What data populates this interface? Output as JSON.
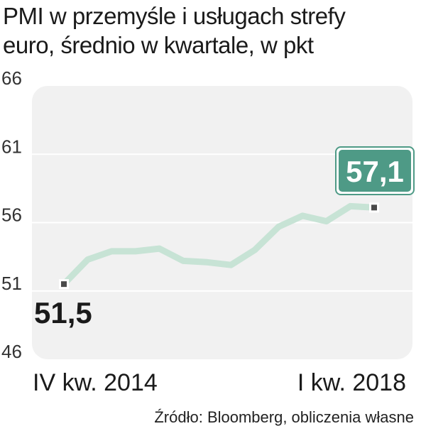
{
  "chart_data": {
    "type": "line",
    "title_lines": [
      "PMI w przemyśle i usługach strefy",
      "euro, średnio w kwartale, w pkt"
    ],
    "y_ticks": [
      "66",
      "61",
      "56",
      "51",
      "46"
    ],
    "y_tick_values": [
      66,
      61,
      56,
      51,
      46
    ],
    "ylim": [
      46,
      66
    ],
    "x_start_label": "IV kw. 2014",
    "x_end_label": "I kw. 2018",
    "series": [
      {
        "values": [
          51.5,
          53.3,
          53.9,
          53.9,
          54.1,
          53.2,
          53.1,
          52.9,
          54.0,
          55.7,
          56.5,
          56.1,
          57.2,
          57.1
        ]
      }
    ],
    "start_value_label": "51,5",
    "end_value_label": "57,1",
    "grid": true
  },
  "source": "Źródło: Bloomberg, obliczenia własne",
  "colors": {
    "line": "#c7e3d5",
    "marker": "#4a4a4a",
    "highlight_box": "#4e9a86",
    "plot_bg": "#f1f1f1",
    "gridline": "#ffffff"
  }
}
